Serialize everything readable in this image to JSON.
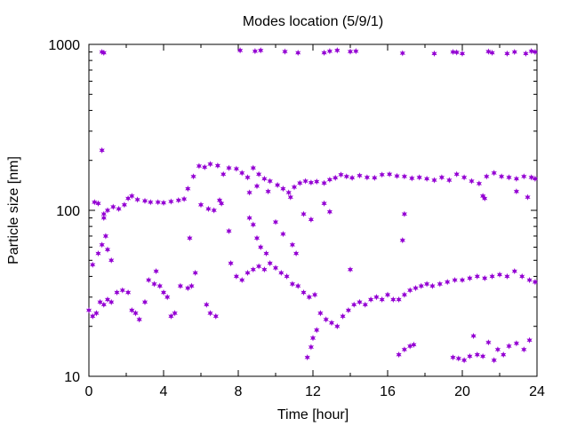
{
  "chart_data": {
    "type": "scatter",
    "title": "Modes location (5/9/1)",
    "xlabel": "Time [hour]",
    "ylabel": "Particle size [nm]",
    "xlim": [
      0,
      24
    ],
    "ylim": [
      10,
      1000
    ],
    "yscale": "log",
    "grid": false,
    "legend": "none",
    "marker_color": "#9400d3",
    "marker_shape": "asterisk",
    "x_ticks": [
      {
        "value": 0,
        "label": "0"
      },
      {
        "value": 4,
        "label": "4"
      },
      {
        "value": 8,
        "label": "8"
      },
      {
        "value": 12,
        "label": "12"
      },
      {
        "value": 16,
        "label": "16"
      },
      {
        "value": 20,
        "label": "20"
      },
      {
        "value": 24,
        "label": "24"
      }
    ],
    "y_ticks": [
      {
        "value": 10,
        "label": "10"
      },
      {
        "value": 100,
        "label": "100"
      },
      {
        "value": 1000,
        "label": "1000"
      }
    ],
    "series": [
      {
        "values": [
          [
            0.7,
            900
          ],
          [
            0.8,
            890
          ],
          [
            8.1,
            920
          ],
          [
            8.9,
            910
          ],
          [
            9.2,
            920
          ],
          [
            10.5,
            905
          ],
          [
            11.2,
            890
          ],
          [
            12.6,
            890
          ],
          [
            12.9,
            910
          ],
          [
            13.3,
            920
          ],
          [
            14.0,
            905
          ],
          [
            14.3,
            910
          ],
          [
            16.8,
            885
          ],
          [
            18.5,
            880
          ],
          [
            19.5,
            900
          ],
          [
            19.7,
            895
          ],
          [
            20.0,
            880
          ],
          [
            21.4,
            905
          ],
          [
            21.6,
            890
          ],
          [
            22.4,
            880
          ],
          [
            22.8,
            900
          ],
          [
            23.4,
            880
          ],
          [
            23.7,
            910
          ],
          [
            23.9,
            900
          ],
          [
            0.7,
            230
          ],
          [
            0.3,
            112
          ],
          [
            0.5,
            110
          ],
          [
            0.8,
            95
          ],
          [
            1.0,
            100
          ],
          [
            1.3,
            105
          ],
          [
            1.6,
            102
          ],
          [
            1.9,
            108
          ],
          [
            2.1,
            118
          ],
          [
            2.3,
            122
          ],
          [
            2.6,
            116
          ],
          [
            3.0,
            114
          ],
          [
            3.3,
            112
          ],
          [
            3.7,
            112
          ],
          [
            4.0,
            111
          ],
          [
            4.4,
            113
          ],
          [
            4.8,
            115
          ],
          [
            5.1,
            117
          ],
          [
            5.3,
            135
          ],
          [
            5.6,
            160
          ],
          [
            5.9,
            185
          ],
          [
            6.2,
            182
          ],
          [
            6.5,
            190
          ],
          [
            6.9,
            186
          ],
          [
            7.2,
            165
          ],
          [
            7.5,
            180
          ],
          [
            7.9,
            178
          ],
          [
            8.2,
            168
          ],
          [
            8.5,
            158
          ],
          [
            8.8,
            180
          ],
          [
            9.1,
            165
          ],
          [
            9.4,
            155
          ],
          [
            9.7,
            150
          ],
          [
            10.1,
            142
          ],
          [
            10.4,
            135
          ],
          [
            10.7,
            128
          ],
          [
            11.0,
            138
          ],
          [
            11.3,
            146
          ],
          [
            11.6,
            150
          ],
          [
            11.9,
            147
          ],
          [
            12.2,
            149
          ],
          [
            12.6,
            146
          ],
          [
            12.9,
            153
          ],
          [
            13.2,
            157
          ],
          [
            13.5,
            164
          ],
          [
            13.8,
            160
          ],
          [
            14.1,
            157
          ],
          [
            14.5,
            162
          ],
          [
            14.9,
            158
          ],
          [
            15.3,
            157
          ],
          [
            15.7,
            164
          ],
          [
            16.1,
            165
          ],
          [
            16.5,
            161
          ],
          [
            16.9,
            160
          ],
          [
            17.3,
            156
          ],
          [
            17.7,
            158
          ],
          [
            18.1,
            155
          ],
          [
            18.5,
            152
          ],
          [
            18.9,
            158
          ],
          [
            19.3,
            152
          ],
          [
            19.7,
            165
          ],
          [
            20.1,
            158
          ],
          [
            20.5,
            150
          ],
          [
            20.9,
            145
          ],
          [
            21.3,
            160
          ],
          [
            21.7,
            168
          ],
          [
            22.1,
            160
          ],
          [
            22.5,
            158
          ],
          [
            22.9,
            155
          ],
          [
            23.3,
            160
          ],
          [
            23.7,
            158
          ],
          [
            23.9,
            155
          ],
          [
            21.1,
            122
          ],
          [
            21.2,
            118
          ],
          [
            23.5,
            120
          ],
          [
            22.9,
            130
          ],
          [
            8.6,
            128
          ],
          [
            9.0,
            140
          ],
          [
            9.6,
            130
          ],
          [
            10.8,
            120
          ],
          [
            11.5,
            95
          ],
          [
            11.9,
            88
          ],
          [
            12.6,
            110
          ],
          [
            12.9,
            98
          ],
          [
            16.9,
            95
          ],
          [
            16.8,
            66
          ],
          [
            14.0,
            44
          ],
          [
            6.0,
            108
          ],
          [
            6.4,
            102
          ],
          [
            6.7,
            100
          ],
          [
            7.0,
            115
          ],
          [
            7.1,
            110
          ],
          [
            0.2,
            47
          ],
          [
            0.5,
            55
          ],
          [
            0.7,
            62
          ],
          [
            0.9,
            70
          ],
          [
            1.0,
            58
          ],
          [
            1.2,
            50
          ],
          [
            0.8,
            90
          ],
          [
            8.6,
            90
          ],
          [
            8.8,
            82
          ],
          [
            9.0,
            68
          ],
          [
            9.2,
            60
          ],
          [
            9.5,
            55
          ],
          [
            10.0,
            85
          ],
          [
            10.4,
            72
          ],
          [
            10.9,
            62
          ],
          [
            11.1,
            55
          ],
          [
            5.4,
            68
          ],
          [
            7.5,
            75
          ],
          [
            0.0,
            25
          ],
          [
            0.2,
            23
          ],
          [
            0.4,
            24
          ],
          [
            0.6,
            28
          ],
          [
            0.8,
            27
          ],
          [
            1.0,
            29
          ],
          [
            1.2,
            28
          ],
          [
            1.5,
            32
          ],
          [
            1.8,
            33
          ],
          [
            2.1,
            32
          ],
          [
            2.3,
            25
          ],
          [
            2.5,
            24
          ],
          [
            2.7,
            22
          ],
          [
            3.0,
            28
          ],
          [
            3.2,
            38
          ],
          [
            3.5,
            36
          ],
          [
            3.6,
            43
          ],
          [
            3.8,
            35
          ],
          [
            4.0,
            32
          ],
          [
            4.2,
            30
          ],
          [
            4.4,
            23
          ],
          [
            4.6,
            24
          ],
          [
            4.9,
            35
          ],
          [
            5.3,
            34
          ],
          [
            5.5,
            35
          ],
          [
            5.7,
            42
          ],
          [
            6.3,
            27
          ],
          [
            6.5,
            24
          ],
          [
            6.8,
            23
          ],
          [
            7.6,
            48
          ],
          [
            7.9,
            40
          ],
          [
            8.2,
            38
          ],
          [
            8.5,
            42
          ],
          [
            8.8,
            44
          ],
          [
            9.1,
            46
          ],
          [
            9.4,
            44
          ],
          [
            9.7,
            48
          ],
          [
            10.0,
            45
          ],
          [
            10.3,
            42
          ],
          [
            10.6,
            40
          ],
          [
            10.9,
            36
          ],
          [
            11.2,
            35
          ],
          [
            11.5,
            32
          ],
          [
            11.8,
            30
          ],
          [
            12.1,
            31
          ],
          [
            12.4,
            24
          ],
          [
            12.7,
            22
          ],
          [
            13.0,
            21
          ],
          [
            13.3,
            20
          ],
          [
            13.6,
            23
          ],
          [
            13.9,
            25
          ],
          [
            14.2,
            27
          ],
          [
            14.5,
            28
          ],
          [
            14.8,
            27
          ],
          [
            15.1,
            29
          ],
          [
            15.4,
            30
          ],
          [
            15.7,
            29
          ],
          [
            16.0,
            31
          ],
          [
            16.3,
            29
          ],
          [
            16.6,
            29
          ],
          [
            16.9,
            31
          ],
          [
            17.2,
            33
          ],
          [
            17.5,
            34
          ],
          [
            17.8,
            35
          ],
          [
            18.1,
            36
          ],
          [
            18.4,
            35
          ],
          [
            18.8,
            36
          ],
          [
            19.2,
            37
          ],
          [
            19.6,
            38
          ],
          [
            20.0,
            38
          ],
          [
            20.4,
            39
          ],
          [
            20.8,
            40
          ],
          [
            21.2,
            39
          ],
          [
            21.6,
            40
          ],
          [
            22.0,
            41
          ],
          [
            22.4,
            40
          ],
          [
            22.8,
            43
          ],
          [
            23.2,
            40
          ],
          [
            23.6,
            38
          ],
          [
            23.9,
            37
          ],
          [
            12.2,
            19
          ],
          [
            11.7,
            13
          ],
          [
            11.9,
            15
          ],
          [
            12.0,
            17
          ],
          [
            16.6,
            13.5
          ],
          [
            16.9,
            14.5
          ],
          [
            17.2,
            15.2
          ],
          [
            17.4,
            15.5
          ],
          [
            19.5,
            13
          ],
          [
            19.8,
            12.8
          ],
          [
            20.1,
            12.5
          ],
          [
            20.4,
            13.2
          ],
          [
            20.6,
            17.5
          ],
          [
            20.8,
            13.5
          ],
          [
            21.1,
            13.2
          ],
          [
            21.4,
            16.0
          ],
          [
            21.7,
            12.5
          ],
          [
            21.9,
            14.5
          ],
          [
            22.2,
            13.5
          ],
          [
            22.5,
            15.2
          ],
          [
            22.9,
            15.8
          ],
          [
            23.3,
            14.5
          ],
          [
            23.6,
            16.5
          ]
        ]
      }
    ]
  }
}
